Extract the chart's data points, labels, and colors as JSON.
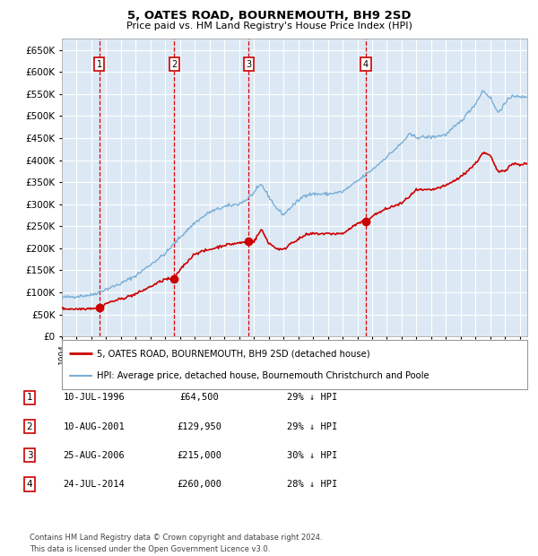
{
  "title": "5, OATES ROAD, BOURNEMOUTH, BH9 2SD",
  "subtitle": "Price paid vs. HM Land Registry's House Price Index (HPI)",
  "bg_color": "#dce9f5",
  "hpi_color": "#7aaed6",
  "price_color": "#cc0000",
  "marker_color": "#cc0000",
  "vline_color": "#dd0000",
  "grid_color": "#ffffff",
  "ylim": [
    0,
    675000
  ],
  "yticks": [
    0,
    50000,
    100000,
    150000,
    200000,
    250000,
    300000,
    350000,
    400000,
    450000,
    500000,
    550000,
    600000,
    650000
  ],
  "purchases": [
    {
      "date_num": 1996.53,
      "price": 64500,
      "label": "1"
    },
    {
      "date_num": 2001.61,
      "price": 129950,
      "label": "2"
    },
    {
      "date_num": 2006.65,
      "price": 215000,
      "label": "3"
    },
    {
      "date_num": 2014.56,
      "price": 260000,
      "label": "4"
    }
  ],
  "table_rows": [
    {
      "num": "1",
      "date": "10-JUL-1996",
      "price": "£64,500",
      "pct": "29% ↓ HPI"
    },
    {
      "num": "2",
      "date": "10-AUG-2001",
      "price": "£129,950",
      "pct": "29% ↓ HPI"
    },
    {
      "num": "3",
      "date": "25-AUG-2006",
      "price": "£215,000",
      "pct": "30% ↓ HPI"
    },
    {
      "num": "4",
      "date": "24-JUL-2014",
      "price": "£260,000",
      "pct": "28% ↓ HPI"
    }
  ],
  "legend_line1": "5, OATES ROAD, BOURNEMOUTH, BH9 2SD (detached house)",
  "legend_line2": "HPI: Average price, detached house, Bournemouth Christchurch and Poole",
  "footnote": "Contains HM Land Registry data © Crown copyright and database right 2024.\nThis data is licensed under the Open Government Licence v3.0.",
  "xmin": 1994.0,
  "xmax": 2025.5,
  "hpi_anchors": [
    [
      1994.0,
      88000
    ],
    [
      1995.0,
      91000
    ],
    [
      1996.0,
      94000
    ],
    [
      1997.0,
      107000
    ],
    [
      1998.0,
      120000
    ],
    [
      1999.0,
      138000
    ],
    [
      2000.0,
      163000
    ],
    [
      2001.0,
      188000
    ],
    [
      2002.0,
      225000
    ],
    [
      2003.0,
      258000
    ],
    [
      2004.0,
      282000
    ],
    [
      2005.0,
      294000
    ],
    [
      2006.0,
      301000
    ],
    [
      2006.5,
      310000
    ],
    [
      2007.0,
      326000
    ],
    [
      2007.5,
      345000
    ],
    [
      2008.0,
      318000
    ],
    [
      2008.5,
      292000
    ],
    [
      2009.0,
      276000
    ],
    [
      2009.5,
      293000
    ],
    [
      2010.0,
      308000
    ],
    [
      2010.5,
      322000
    ],
    [
      2011.0,
      323000
    ],
    [
      2012.0,
      323000
    ],
    [
      2013.0,
      328000
    ],
    [
      2014.0,
      352000
    ],
    [
      2015.0,
      378000
    ],
    [
      2016.0,
      408000
    ],
    [
      2017.0,
      438000
    ],
    [
      2017.5,
      458000
    ],
    [
      2018.0,
      452000
    ],
    [
      2019.0,
      452000
    ],
    [
      2020.0,
      458000
    ],
    [
      2021.0,
      488000
    ],
    [
      2022.0,
      528000
    ],
    [
      2022.5,
      558000
    ],
    [
      2023.0,
      542000
    ],
    [
      2023.5,
      508000
    ],
    [
      2024.0,
      528000
    ],
    [
      2024.5,
      548000
    ],
    [
      2025.0,
      542000
    ],
    [
      2025.5,
      545000
    ]
  ],
  "price_anchors": [
    [
      1994.0,
      63000
    ],
    [
      1995.0,
      62000
    ],
    [
      1996.0,
      64000
    ],
    [
      1996.53,
      64500
    ],
    [
      1997.0,
      75000
    ],
    [
      1998.0,
      85000
    ],
    [
      1999.0,
      96000
    ],
    [
      2000.0,
      113000
    ],
    [
      2001.0,
      130000
    ],
    [
      2001.61,
      129950
    ],
    [
      2002.0,
      152000
    ],
    [
      2002.5,
      170000
    ],
    [
      2003.0,
      188000
    ],
    [
      2004.0,
      197000
    ],
    [
      2005.0,
      207000
    ],
    [
      2006.0,
      212000
    ],
    [
      2006.65,
      215000
    ],
    [
      2007.0,
      215000
    ],
    [
      2007.5,
      243000
    ],
    [
      2008.0,
      212000
    ],
    [
      2008.5,
      200000
    ],
    [
      2009.0,
      196000
    ],
    [
      2009.5,
      212000
    ],
    [
      2010.0,
      220000
    ],
    [
      2010.5,
      230000
    ],
    [
      2011.0,
      233000
    ],
    [
      2012.0,
      233000
    ],
    [
      2013.0,
      233000
    ],
    [
      2014.0,
      256000
    ],
    [
      2014.56,
      260000
    ],
    [
      2015.0,
      273000
    ],
    [
      2016.0,
      290000
    ],
    [
      2017.0,
      302000
    ],
    [
      2017.5,
      317000
    ],
    [
      2018.0,
      332000
    ],
    [
      2018.5,
      332000
    ],
    [
      2019.0,
      332000
    ],
    [
      2020.0,
      342000
    ],
    [
      2021.0,
      362000
    ],
    [
      2022.0,
      392000
    ],
    [
      2022.5,
      417000
    ],
    [
      2023.0,
      410000
    ],
    [
      2023.5,
      374000
    ],
    [
      2024.0,
      377000
    ],
    [
      2024.5,
      392000
    ],
    [
      2025.0,
      390000
    ],
    [
      2025.5,
      392000
    ]
  ]
}
